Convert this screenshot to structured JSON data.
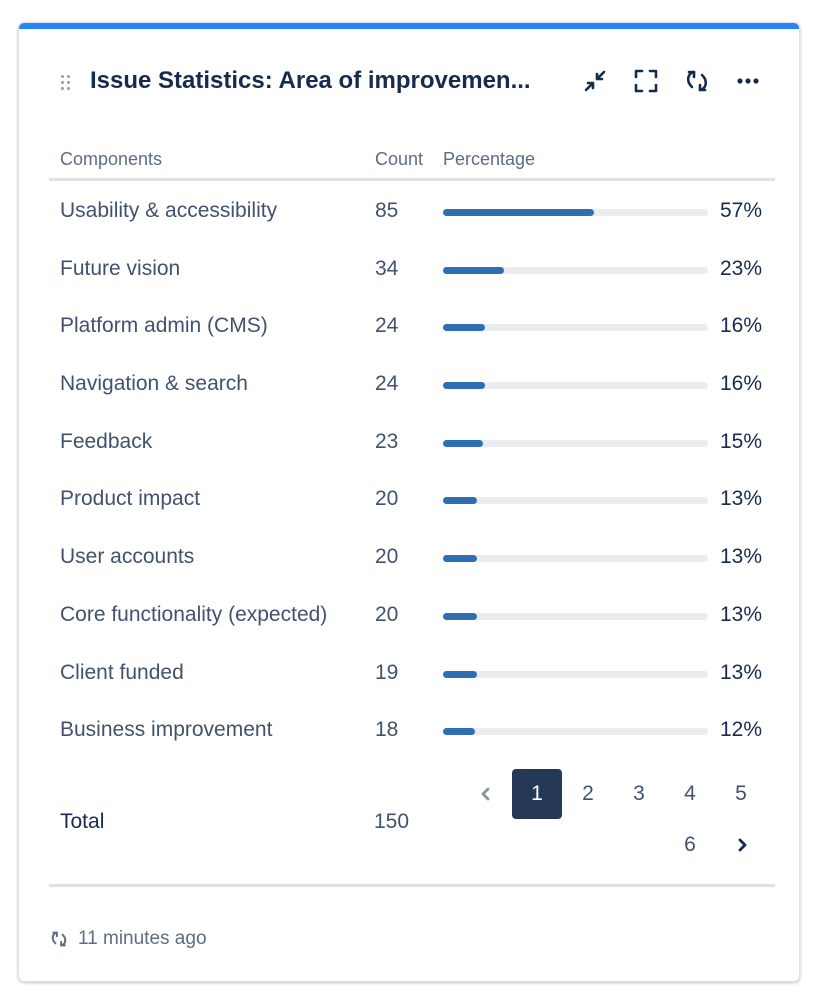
{
  "gadget": {
    "title": "Issue Statistics: Area of improvemen...",
    "accent_color": "#2684ff",
    "header_icons": [
      "drag-handle-icon",
      "minimize-icon",
      "fullscreen-icon",
      "refresh-icon",
      "more-icon"
    ]
  },
  "table": {
    "headers": {
      "component": "Components",
      "count": "Count",
      "percentage": "Percentage"
    },
    "bar_color": "#2f6eb2",
    "rows": [
      {
        "name": "Usability & accessibility",
        "count": "85",
        "percent": 57,
        "percent_label": "57%"
      },
      {
        "name": "Future vision",
        "count": "34",
        "percent": 23,
        "percent_label": "23%"
      },
      {
        "name": "Platform admin (CMS)",
        "count": "24",
        "percent": 16,
        "percent_label": "16%"
      },
      {
        "name": "Navigation & search",
        "count": "24",
        "percent": 16,
        "percent_label": "16%"
      },
      {
        "name": "Feedback",
        "count": "23",
        "percent": 15,
        "percent_label": "15%"
      },
      {
        "name": "Product impact",
        "count": "20",
        "percent": 13,
        "percent_label": "13%"
      },
      {
        "name": "User accounts",
        "count": "20",
        "percent": 13,
        "percent_label": "13%"
      },
      {
        "name": "Core functionality (expected)",
        "count": "20",
        "percent": 13,
        "percent_label": "13%"
      },
      {
        "name": "Client funded",
        "count": "19",
        "percent": 13,
        "percent_label": "13%"
      },
      {
        "name": "Business improvement",
        "count": "18",
        "percent": 12,
        "percent_label": "12%"
      }
    ],
    "total_label": "Total",
    "total_value": "150"
  },
  "pagination": {
    "prev_icon": "chevron-left-icon",
    "next_icon": "chevron-right-icon",
    "pages": [
      "1",
      "2",
      "3",
      "4",
      "5",
      "6"
    ],
    "current": "1"
  },
  "footer": {
    "icon": "refresh-icon",
    "updated": "11 minutes ago"
  }
}
